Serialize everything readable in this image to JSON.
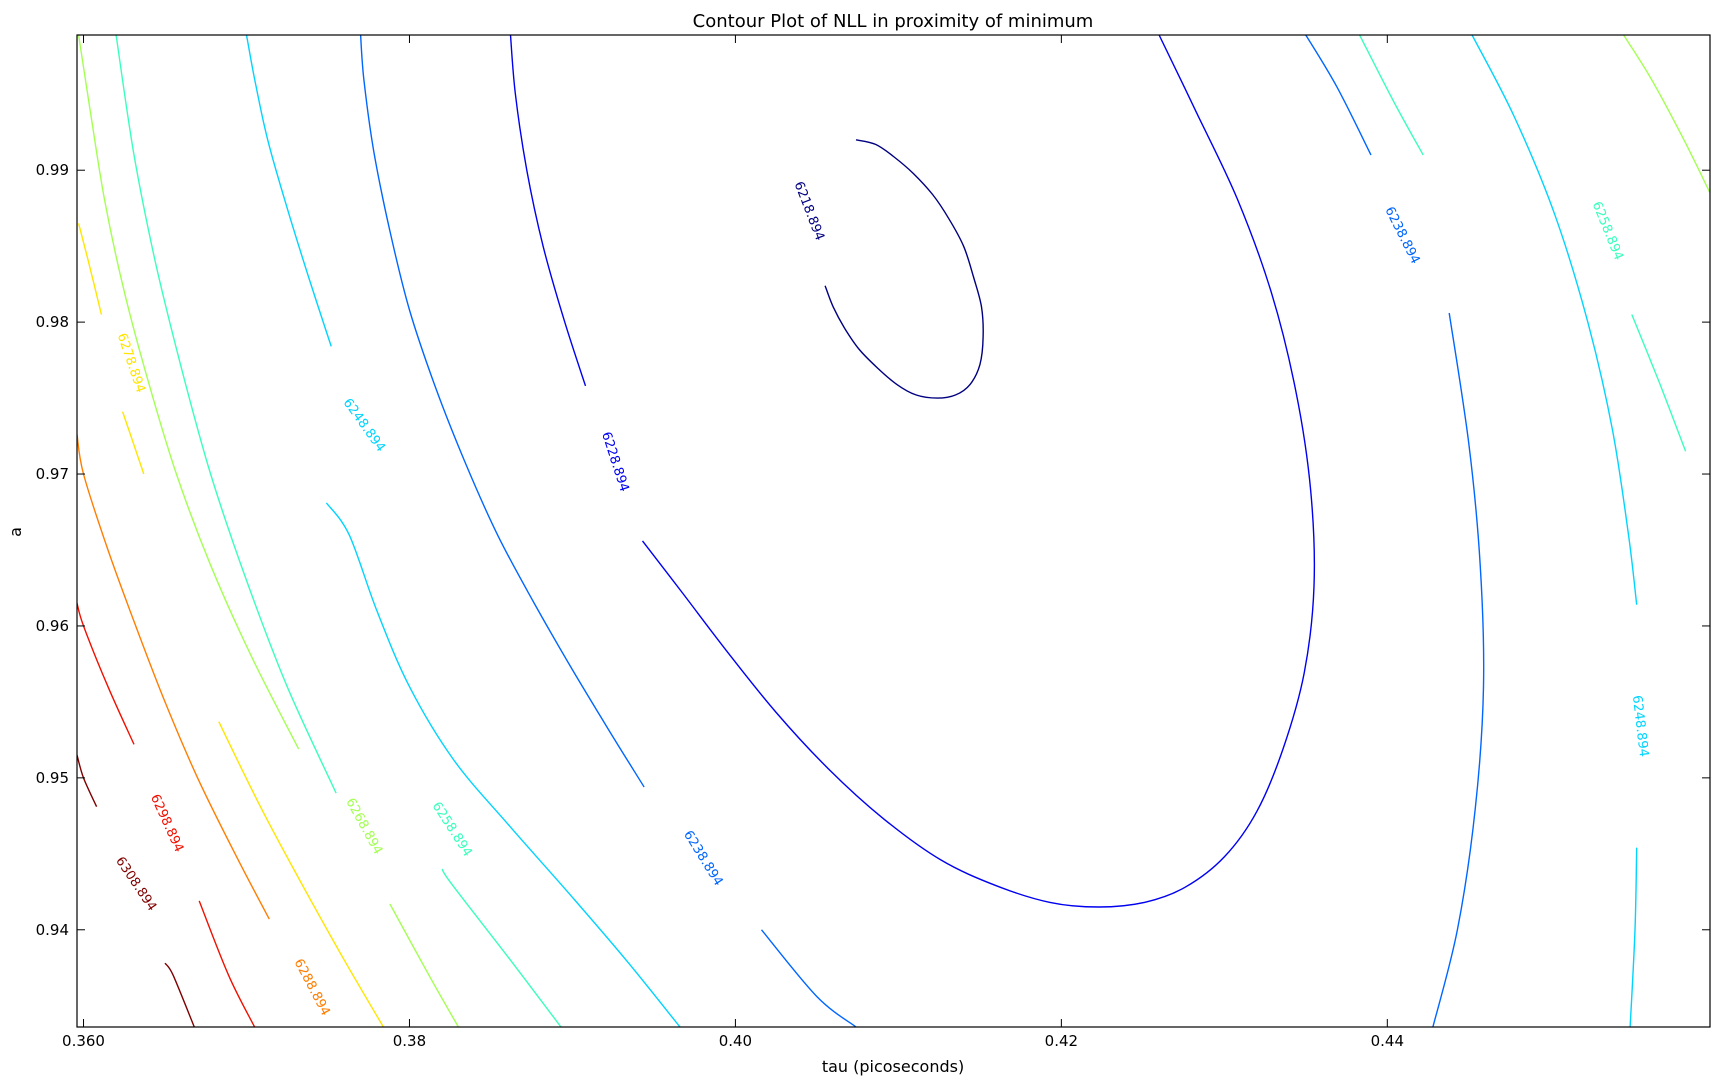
{
  "chart_data": {
    "type": "contour",
    "title": "Contour Plot of NLL in proximity of minimum",
    "xlabel": "tau (picoseconds)",
    "ylabel": "a",
    "xlim": [
      0.3596,
      0.4598
    ],
    "ylim": [
      0.9336,
      0.9989
    ],
    "x_ticks": [
      0.36,
      0.38,
      0.4,
      0.42,
      0.44
    ],
    "x_tick_labels": [
      "0.360",
      "0.38",
      "0.40",
      "0.42",
      "0.44"
    ],
    "y_ticks": [
      0.94,
      0.95,
      0.96,
      0.97,
      0.98,
      0.99
    ],
    "y_tick_labels": [
      "0.94",
      "0.95",
      "0.96",
      "0.97",
      "0.98",
      "0.99"
    ],
    "grid": false,
    "colormap": "jet",
    "minimum_estimate": {
      "tau": 0.4122,
      "a": 0.98
    },
    "levels": [
      {
        "value": 6218.894,
        "label": "6218.894",
        "color": "#000080"
      },
      {
        "value": 6228.894,
        "label": "6228.894",
        "color": "#0000f1"
      },
      {
        "value": 6238.894,
        "label": "6238.894",
        "color": "#0066ff"
      },
      {
        "value": 6248.894,
        "label": "6248.894",
        "color": "#00d4ff"
      },
      {
        "value": 6258.894,
        "label": "6258.894",
        "color": "#3affbc"
      },
      {
        "value": 6268.894,
        "label": "6268.894",
        "color": "#a4ff53"
      },
      {
        "value": 6278.894,
        "label": "6278.894",
        "color": "#ffe500"
      },
      {
        "value": 6288.894,
        "label": "6288.894",
        "color": "#ff7d00"
      },
      {
        "value": 6298.894,
        "label": "6298.894",
        "color": "#f01000"
      },
      {
        "value": 6308.894,
        "label": "6308.894",
        "color": "#800000"
      }
    ],
    "contours": [
      {
        "level": 6218.894,
        "segments": [
          [
            [
              0.4055,
              0.9824
            ],
            [
              0.406,
              0.981
            ],
            [
              0.4067,
              0.9796
            ],
            [
              0.4076,
              0.9782
            ],
            [
              0.4087,
              0.977
            ],
            [
              0.4099,
              0.9759
            ],
            [
              0.4111,
              0.9752
            ],
            [
              0.4124,
              0.975
            ],
            [
              0.4135,
              0.9752
            ],
            [
              0.4144,
              0.9759
            ],
            [
              0.415,
              0.9772
            ],
            [
              0.4152,
              0.979
            ],
            [
              0.4151,
              0.981
            ],
            [
              0.4146,
              0.983
            ],
            [
              0.414,
              0.985
            ],
            [
              0.4131,
              0.9868
            ],
            [
              0.4121,
              0.9884
            ],
            [
              0.4109,
              0.9898
            ],
            [
              0.4097,
              0.9909
            ],
            [
              0.4086,
              0.9917
            ],
            [
              0.4074,
              0.992
            ]
          ]
        ]
      },
      {
        "level": 6228.894,
        "segments": [
          [
            [
              0.3943,
              0.9656
            ],
            [
              0.3968,
              0.9621
            ],
            [
              0.3995,
              0.9583
            ],
            [
              0.4025,
              0.9543
            ],
            [
              0.4057,
              0.9506
            ],
            [
              0.4091,
              0.9473
            ],
            [
              0.4126,
              0.9446
            ],
            [
              0.416,
              0.9429
            ],
            [
              0.4193,
              0.9418
            ],
            [
              0.4223,
              0.9415
            ],
            [
              0.4251,
              0.9418
            ],
            [
              0.4276,
              0.9428
            ],
            [
              0.43,
              0.9448
            ],
            [
              0.432,
              0.9478
            ],
            [
              0.4336,
              0.9519
            ],
            [
              0.4349,
              0.9569
            ],
            [
              0.4355,
              0.9626
            ],
            [
              0.4353,
              0.9689
            ],
            [
              0.4344,
              0.9754
            ],
            [
              0.4329,
              0.9819
            ],
            [
              0.4308,
              0.9881
            ],
            [
              0.4282,
              0.994
            ],
            [
              0.426,
              0.9989
            ]
          ],
          [
            [
              0.3908,
              0.9758
            ],
            [
              0.3895,
              0.9801
            ],
            [
              0.3882,
              0.985
            ],
            [
              0.3872,
              0.99
            ],
            [
              0.3865,
              0.995
            ],
            [
              0.3862,
              0.9989
            ]
          ]
        ]
      },
      {
        "level": 6238.894,
        "segments": [
          [
            [
              0.3944,
              0.9494
            ],
            [
              0.3922,
              0.9532
            ],
            [
              0.3899,
              0.9573
            ],
            [
              0.3876,
              0.9616
            ],
            [
              0.3854,
              0.966
            ],
            [
              0.3834,
              0.9708
            ],
            [
              0.3816,
              0.9757
            ],
            [
              0.38,
              0.9808
            ],
            [
              0.3788,
              0.986
            ],
            [
              0.3778,
              0.9913
            ],
            [
              0.3772,
              0.996
            ],
            [
              0.377,
              0.9989
            ]
          ],
          [
            [
              0.4074,
              0.9336
            ],
            [
              0.405,
              0.9356
            ],
            [
              0.4016,
              0.94
            ]
          ],
          [
            [
              0.4428,
              0.9336
            ],
            [
              0.4443,
              0.94
            ],
            [
              0.4454,
              0.948
            ],
            [
              0.4459,
              0.956
            ],
            [
              0.4457,
              0.964
            ],
            [
              0.445,
              0.972
            ],
            [
              0.4438,
              0.9806
            ]
          ],
          [
            [
              0.439,
              0.991
            ],
            [
              0.4369,
              0.9955
            ],
            [
              0.435,
              0.9989
            ]
          ]
        ]
      },
      {
        "level": 6248.894,
        "segments": [
          [
            [
              0.3966,
              0.9336
            ],
            [
              0.3933,
              0.938
            ],
            [
              0.3897,
              0.9425
            ],
            [
              0.386,
              0.947
            ],
            [
              0.3827,
              0.9512
            ],
            [
              0.38,
              0.956
            ],
            [
              0.378,
              0.961
            ],
            [
              0.3763,
              0.966
            ],
            [
              0.3749,
              0.9681
            ]
          ],
          [
            [
              0.3752,
              0.9784
            ],
            [
              0.3738,
              0.983
            ],
            [
              0.3725,
              0.9875
            ],
            [
              0.3713,
              0.992
            ],
            [
              0.3705,
              0.996
            ],
            [
              0.37,
              0.9989
            ]
          ],
          [
            [
              0.4549,
              0.9336
            ],
            [
              0.4552,
              0.94
            ],
            [
              0.4553,
              0.9454
            ]
          ],
          [
            [
              0.4553,
              0.9614
            ],
            [
              0.4548,
              0.966
            ],
            [
              0.4538,
              0.973
            ],
            [
              0.4523,
              0.98
            ],
            [
              0.4503,
              0.987
            ],
            [
              0.4478,
              0.9935
            ],
            [
              0.4452,
              0.9989
            ]
          ]
        ]
      },
      {
        "level": 6258.894,
        "segments": [
          [
            [
              0.3893,
              0.9336
            ],
            [
              0.3862,
              0.938
            ],
            [
              0.3826,
              0.943
            ],
            [
              0.382,
              0.944
            ]
          ],
          [
            [
              0.3755,
              0.949
            ],
            [
              0.3725,
              0.956
            ],
            [
              0.37,
              0.963
            ],
            [
              0.3678,
              0.97
            ],
            [
              0.366,
              0.977
            ],
            [
              0.3644,
              0.984
            ],
            [
              0.3631,
              0.991
            ],
            [
              0.362,
              0.9989
            ]
          ],
          [
            [
              0.4422,
              0.991
            ],
            [
              0.4404,
              0.9945
            ],
            [
              0.4383,
              0.9989
            ]
          ],
          [
            [
              0.4583,
              0.9715
            ],
            [
              0.4567,
              0.976
            ],
            [
              0.455,
              0.9805
            ]
          ]
        ]
      },
      {
        "level": 6268.894,
        "segments": [
          [
            [
              0.383,
              0.9336
            ],
            [
              0.3812,
              0.937
            ],
            [
              0.3788,
              0.9417
            ]
          ],
          [
            [
              0.3732,
              0.9519
            ],
            [
              0.3703,
              0.958
            ],
            [
              0.3678,
              0.964
            ],
            [
              0.3657,
              0.97
            ],
            [
              0.364,
              0.976
            ],
            [
              0.3625,
              0.982
            ],
            [
              0.3613,
              0.988
            ],
            [
              0.3604,
              0.994
            ],
            [
              0.3597,
              0.9989
            ]
          ],
          [
            [
              0.4598,
              0.9885
            ],
            [
              0.4582,
              0.992
            ],
            [
              0.4562,
              0.996
            ],
            [
              0.4545,
              0.9989
            ]
          ]
        ]
      },
      {
        "level": 6278.894,
        "segments": [
          [
            [
              0.3784,
              0.9336
            ],
            [
              0.376,
              0.938
            ],
            [
              0.3734,
              0.943
            ],
            [
              0.3709,
              0.948
            ],
            [
              0.3683,
              0.9537
            ]
          ],
          [
            [
              0.3637,
              0.97
            ],
            [
              0.3624,
              0.9741
            ]
          ],
          [
            [
              0.3611,
              0.9805
            ],
            [
              0.3603,
              0.984
            ],
            [
              0.3597,
              0.9865
            ]
          ]
        ]
      },
      {
        "level": 6288.894,
        "segments": [
          [
            [
              0.3714,
              0.9407
            ],
            [
              0.3693,
              0.945
            ],
            [
              0.367,
              0.95
            ],
            [
              0.365,
              0.955
            ],
            [
              0.3632,
              0.96
            ],
            [
              0.3615,
              0.965
            ],
            [
              0.36,
              0.97
            ],
            [
              0.3596,
              0.9726
            ]
          ]
        ]
      },
      {
        "level": 6298.894,
        "segments": [
          [
            [
              0.3705,
              0.9336
            ],
            [
              0.3689,
              0.937
            ],
            [
              0.3671,
              0.9419
            ]
          ],
          [
            [
              0.3631,
              0.9522
            ],
            [
              0.3615,
              0.956
            ],
            [
              0.36,
              0.96
            ],
            [
              0.3596,
              0.9615
            ]
          ]
        ]
      },
      {
        "level": 6308.894,
        "segments": [
          [
            [
              0.3668,
              0.9336
            ],
            [
              0.3655,
              0.937
            ],
            [
              0.365,
              0.9378
            ]
          ],
          [
            [
              0.3608,
              0.9481
            ],
            [
              0.36,
              0.95
            ],
            [
              0.3596,
              0.9515
            ]
          ]
        ]
      }
    ],
    "inline_labels": [
      {
        "level": 6218.894,
        "text": "6218.894",
        "tau": 0.4045,
        "a": 0.9873
      },
      {
        "level": 6228.894,
        "text": "6228.894",
        "tau": 0.3926,
        "a": 0.9708
      },
      {
        "level": 6238.894,
        "text": "6238.894",
        "tau": 0.398,
        "a": 0.9447
      },
      {
        "level": 6238.894,
        "text": "6238.894",
        "tau": 0.4409,
        "a": 0.9857
      },
      {
        "level": 6248.894,
        "text": "6248.894",
        "tau": 0.3772,
        "a": 0.9732
      },
      {
        "level": 6248.894,
        "text": "6248.894",
        "tau": 0.4555,
        "a": 0.9534
      },
      {
        "level": 6258.894,
        "text": "6258.894",
        "tau": 0.3826,
        "a": 0.9466
      },
      {
        "level": 6258.894,
        "text": "6258.894",
        "tau": 0.4535,
        "a": 0.986
      },
      {
        "level": 6268.894,
        "text": "6268.894",
        "tau": 0.3772,
        "a": 0.9468
      },
      {
        "level": 6278.894,
        "text": "6278.894",
        "tau": 0.3629,
        "a": 0.9773
      },
      {
        "level": 6288.894,
        "text": "6288.894",
        "tau": 0.374,
        "a": 0.9362
      },
      {
        "level": 6298.894,
        "text": "6298.894",
        "tau": 0.3651,
        "a": 0.947
      },
      {
        "level": 6308.894,
        "text": "6308.894",
        "tau": 0.3632,
        "a": 0.943
      }
    ]
  }
}
